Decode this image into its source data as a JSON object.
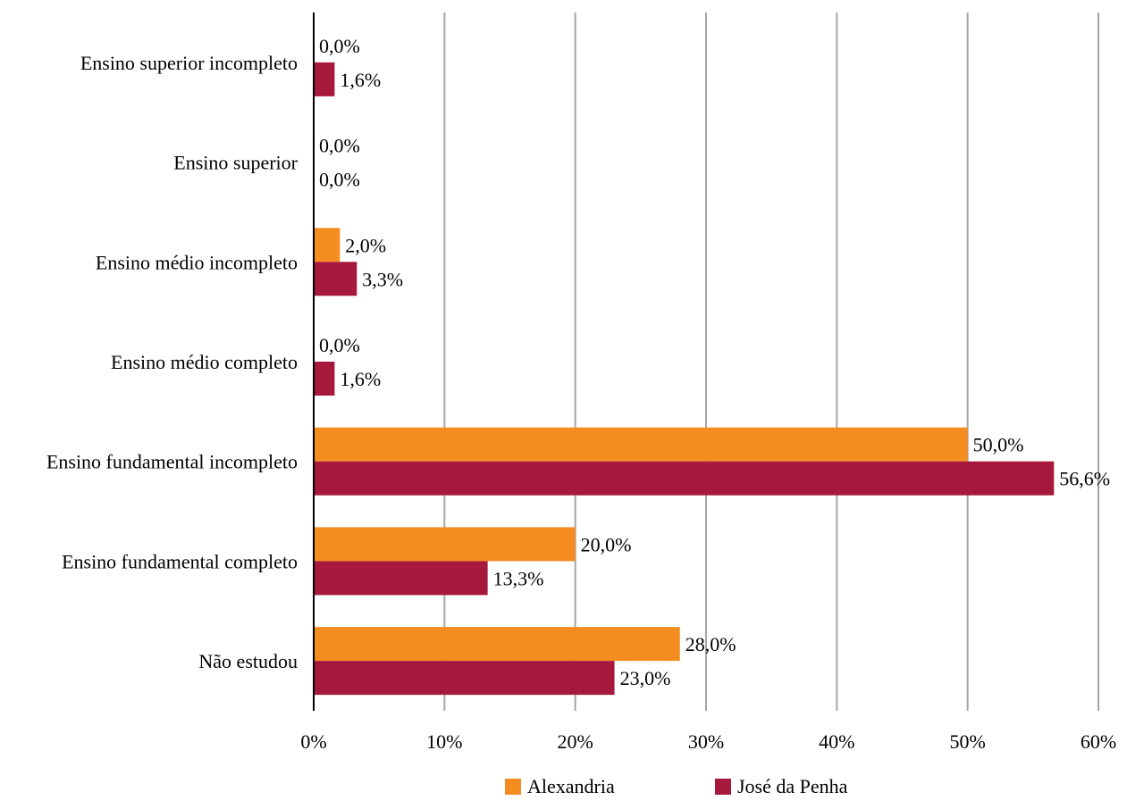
{
  "chart_data": {
    "type": "bar",
    "orientation": "horizontal",
    "categories": [
      "Ensino superior incompleto",
      "Ensino superior",
      "Ensino médio incompleto",
      "Ensino médio completo",
      "Ensino fundamental incompleto",
      "Ensino fundamental completo",
      "Não estudou"
    ],
    "series": [
      {
        "name": "Alexandria",
        "color": "#f48c20",
        "values": [
          0.0,
          0.0,
          2.0,
          0.0,
          50.0,
          20.0,
          28.0
        ],
        "labels": [
          "0,0%",
          "0,0%",
          "2,0%",
          "0,0%",
          "50,0%",
          "20,0%",
          "28,0%"
        ]
      },
      {
        "name": "José da Penha",
        "color": "#a6193c",
        "values": [
          1.6,
          0.0,
          3.3,
          1.6,
          56.6,
          13.3,
          23.0
        ],
        "labels": [
          "1,6%",
          "0,0%",
          "3,3%",
          "1,6%",
          "56,6%",
          "13,3%",
          "23,0%"
        ]
      }
    ],
    "xlim": [
      0,
      60
    ],
    "ticks": [
      0,
      10,
      20,
      30,
      40,
      50,
      60
    ],
    "tick_labels": [
      "0%",
      "10%",
      "20%",
      "30%",
      "40%",
      "50%",
      "60%"
    ],
    "grid": true,
    "legend_position": "bottom",
    "title": "",
    "xlabel": "",
    "ylabel": ""
  }
}
